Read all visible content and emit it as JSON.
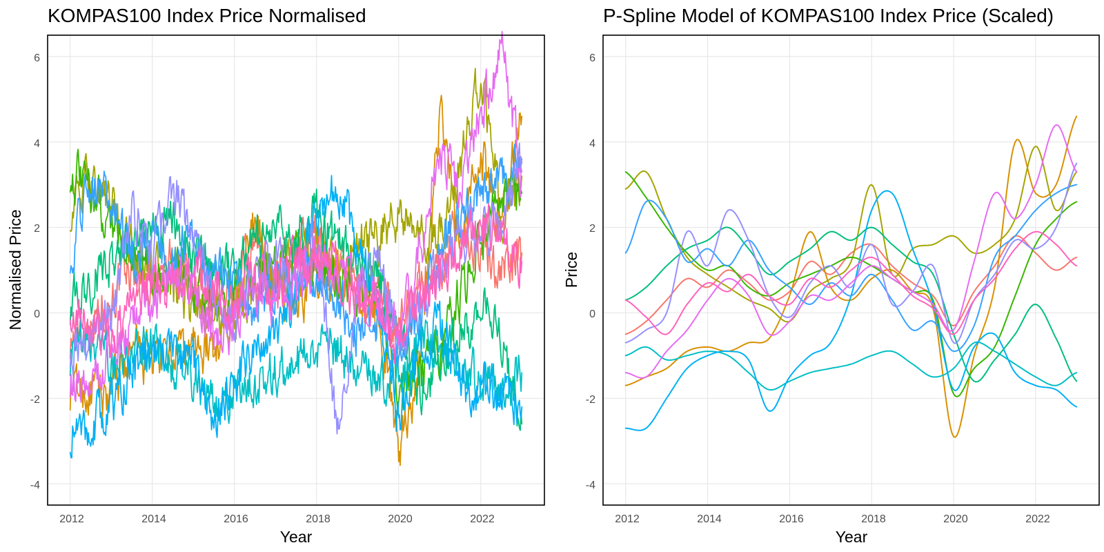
{
  "chart_data": [
    {
      "type": "line",
      "title": "KOMPAS100 Index Price Normalised",
      "xlabel": "Year",
      "ylabel": "Normalised Price",
      "xlim": [
        2011.45,
        2023.55
      ],
      "ylim": [
        -4.5,
        6.5
      ],
      "x_ticks": [
        "2012",
        "2014",
        "2016",
        "2018",
        "2020",
        "2022"
      ],
      "y_ticks": [
        "-4",
        "-2",
        "0",
        "2",
        "4",
        "6"
      ],
      "grid": true,
      "legend": "none",
      "style": "raw",
      "x": [
        2012,
        2012.5,
        2013,
        2013.5,
        2014,
        2014.5,
        2015,
        2015.5,
        2016,
        2016.5,
        2017,
        2017.5,
        2018,
        2018.5,
        2019,
        2019.5,
        2020,
        2020.5,
        2021,
        2021.5,
        2022,
        2022.5,
        2023
      ],
      "series": [
        {
          "color": "#F8766D",
          "values": [
            -0.6,
            -0.2,
            0.4,
            1.0,
            0.6,
            1.2,
            0.8,
            0.2,
            0.5,
            1.4,
            0.9,
            1.6,
            1.8,
            1.1,
            0.7,
            0.4,
            -0.3,
            0.6,
            1.2,
            2.0,
            1.5,
            1.0,
            1.4
          ]
        },
        {
          "color": "#D89000",
          "values": [
            -1.8,
            -1.9,
            -1.9,
            -1.0,
            -1.1,
            -1.1,
            -0.8,
            -0.9,
            0.6,
            2.0,
            0.5,
            0.2,
            0.8,
            1.1,
            0.4,
            0.0,
            -3.2,
            -1.2,
            4.8,
            1.5,
            3.8,
            2.0,
            4.6
          ]
        },
        {
          "color": "#A3A500",
          "values": [
            2.4,
            3.2,
            2.5,
            1.5,
            1.0,
            0.5,
            0.2,
            0.0,
            -0.3,
            0.6,
            0.8,
            1.2,
            1.5,
            0.9,
            1.6,
            1.7,
            2.4,
            1.6,
            1.8,
            3.4,
            5.6,
            2.4,
            3.2
          ]
        },
        {
          "color": "#39B600",
          "values": [
            3.3,
            2.8,
            2.2,
            1.4,
            0.9,
            1.1,
            0.6,
            0.3,
            0.7,
            0.9,
            1.2,
            1.4,
            1.1,
            0.8,
            0.5,
            0.3,
            -1.8,
            -1.4,
            -0.9,
            0.4,
            1.8,
            2.5,
            2.8
          ]
        },
        {
          "color": "#00BF7D",
          "values": [
            0.2,
            0.6,
            1.3,
            1.6,
            1.8,
            2.1,
            1.4,
            0.9,
            1.2,
            1.6,
            2.0,
            1.8,
            2.2,
            1.7,
            1.2,
            0.9,
            -0.6,
            -1.8,
            -1.2,
            -0.5,
            0.2,
            -0.6,
            -2.6
          ]
        },
        {
          "color": "#00BFC4",
          "values": [
            -1.0,
            -0.7,
            -1.2,
            -1.0,
            -0.9,
            -1.1,
            -1.6,
            -2.1,
            -1.8,
            -1.5,
            -1.4,
            -1.2,
            -1.0,
            -0.8,
            -1.3,
            -1.6,
            -1.4,
            -0.6,
            -0.9,
            -1.2,
            -1.6,
            -1.8,
            -1.4
          ]
        },
        {
          "color": "#00B0F6",
          "values": [
            -2.8,
            -2.6,
            -2.2,
            -1.3,
            -1.0,
            -0.8,
            -1.1,
            -2.4,
            -1.5,
            -1.0,
            -0.7,
            0.6,
            2.4,
            3.0,
            1.6,
            0.2,
            -2.5,
            -0.8,
            -0.4,
            -1.5,
            -1.8,
            -1.9,
            -2.2
          ]
        },
        {
          "color": "#35A2FF",
          "values": [
            1.4,
            3.3,
            2.6,
            1.3,
            1.7,
            1.2,
            1.9,
            1.1,
            0.6,
            0.2,
            0.7,
            0.4,
            0.9,
            0.3,
            -0.5,
            -0.2,
            -1.0,
            -0.3,
            1.6,
            2.0,
            2.6,
            3.1,
            3.6
          ]
        },
        {
          "color": "#9590FF",
          "values": [
            -0.8,
            -0.5,
            0.0,
            2.3,
            1.2,
            2.9,
            1.8,
            0.4,
            -0.1,
            0.8,
            1.3,
            0.6,
            1.9,
            -2.8,
            0.5,
            1.2,
            -0.8,
            0.3,
            0.9,
            1.9,
            1.6,
            2.2,
            3.5
          ]
        },
        {
          "color": "#E76BF3",
          "values": [
            -1.5,
            -1.7,
            -1.0,
            -0.4,
            0.3,
            0.9,
            0.4,
            -0.6,
            -0.2,
            0.5,
            0.3,
            0.8,
            1.2,
            0.9,
            0.6,
            0.2,
            -0.4,
            1.4,
            3.8,
            2.6,
            4.8,
            6.2,
            3.3
          ]
        },
        {
          "color": "#FF62BC",
          "values": [
            0.3,
            -0.2,
            -0.6,
            0.2,
            0.8,
            0.5,
            1.0,
            0.4,
            0.2,
            0.9,
            0.6,
            1.1,
            1.4,
            1.0,
            0.4,
            0.1,
            -0.6,
            0.3,
            0.9,
            1.6,
            2.1,
            1.8,
            1.2
          ]
        }
      ]
    },
    {
      "type": "line",
      "title": "P-Spline Model of KOMPAS100 Index Price (Scaled)",
      "xlabel": "Year",
      "ylabel": "Price",
      "xlim": [
        2011.45,
        2023.55
      ],
      "ylim": [
        -4.5,
        6.5
      ],
      "x_ticks": [
        "2012",
        "2014",
        "2016",
        "2018",
        "2020",
        "2022"
      ],
      "y_ticks": [
        "-4",
        "-2",
        "0",
        "2",
        "4",
        "6"
      ],
      "grid": true,
      "legend": "none",
      "style": "smooth",
      "x": [
        2012,
        2012.5,
        2013,
        2013.5,
        2014,
        2014.5,
        2015,
        2015.5,
        2016,
        2016.5,
        2017,
        2017.5,
        2018,
        2018.5,
        2019,
        2019.5,
        2020,
        2020.5,
        2021,
        2021.5,
        2022,
        2022.5,
        2023
      ],
      "series": [
        {
          "color": "#F8766D",
          "values": [
            -0.5,
            -0.2,
            0.3,
            0.8,
            0.6,
            1.0,
            0.7,
            0.3,
            0.5,
            1.2,
            0.9,
            1.4,
            1.6,
            1.1,
            0.7,
            0.4,
            -0.3,
            0.5,
            1.1,
            1.8,
            1.4,
            1.0,
            1.3
          ]
        },
        {
          "color": "#D89000",
          "values": [
            -1.7,
            -1.5,
            -1.3,
            -0.9,
            -0.8,
            -0.9,
            -0.7,
            -0.6,
            0.4,
            1.9,
            0.6,
            0.3,
            0.8,
            1.0,
            0.5,
            0.1,
            -2.9,
            -1.0,
            0.6,
            4.0,
            2.8,
            3.0,
            4.6
          ]
        },
        {
          "color": "#A3A500",
          "values": [
            2.9,
            3.3,
            2.2,
            1.3,
            0.9,
            0.6,
            0.3,
            0.1,
            -0.2,
            0.5,
            0.8,
            1.2,
            3.0,
            0.9,
            1.5,
            1.6,
            1.8,
            1.4,
            1.6,
            2.2,
            3.9,
            2.4,
            3.3
          ]
        },
        {
          "color": "#39B600",
          "values": [
            3.3,
            2.7,
            2.0,
            1.4,
            1.0,
            1.1,
            0.6,
            0.4,
            0.7,
            0.9,
            1.1,
            1.3,
            1.1,
            0.8,
            0.5,
            0.3,
            -1.9,
            -1.3,
            -0.8,
            0.4,
            1.6,
            2.2,
            2.6
          ]
        },
        {
          "color": "#00BF7D",
          "values": [
            0.3,
            0.6,
            1.1,
            1.5,
            1.7,
            2.0,
            1.5,
            0.9,
            1.2,
            1.5,
            1.9,
            1.7,
            2.0,
            1.6,
            1.2,
            0.9,
            -0.5,
            -1.6,
            -1.1,
            -0.5,
            0.2,
            -0.6,
            -1.6
          ]
        },
        {
          "color": "#00BFC4",
          "values": [
            -1.0,
            -0.8,
            -1.1,
            -1.0,
            -0.9,
            -1.0,
            -1.4,
            -1.8,
            -1.6,
            -1.4,
            -1.3,
            -1.2,
            -1.0,
            -0.9,
            -1.2,
            -1.5,
            -1.3,
            -0.7,
            -0.9,
            -1.2,
            -1.5,
            -1.7,
            -1.4
          ]
        },
        {
          "color": "#00B0F6",
          "values": [
            -2.7,
            -2.7,
            -2.0,
            -1.3,
            -1.0,
            -0.9,
            -1.1,
            -2.3,
            -1.5,
            -1.0,
            -0.7,
            0.4,
            2.4,
            2.8,
            1.5,
            0.2,
            -1.8,
            -0.8,
            -0.5,
            -1.4,
            -1.7,
            -1.8,
            -2.2
          ]
        },
        {
          "color": "#35A2FF",
          "values": [
            1.4,
            2.6,
            2.2,
            1.2,
            1.5,
            1.1,
            1.7,
            1.0,
            0.6,
            0.2,
            0.7,
            0.4,
            0.9,
            0.3,
            -0.4,
            -0.2,
            -0.9,
            -0.3,
            1.3,
            1.8,
            2.4,
            2.8,
            3.0
          ]
        },
        {
          "color": "#9590FF",
          "values": [
            -0.7,
            -0.4,
            0.0,
            1.9,
            1.1,
            2.4,
            1.7,
            0.4,
            -0.1,
            0.7,
            1.1,
            0.6,
            1.6,
            0.2,
            0.5,
            1.1,
            -0.7,
            0.3,
            0.9,
            1.7,
            1.5,
            2.0,
            3.5
          ]
        },
        {
          "color": "#E76BF3",
          "values": [
            -1.4,
            -1.5,
            -0.9,
            -0.4,
            0.3,
            0.8,
            0.4,
            -0.5,
            -0.2,
            0.4,
            0.3,
            0.7,
            1.1,
            0.8,
            0.5,
            0.2,
            -0.4,
            1.2,
            2.8,
            2.2,
            3.0,
            4.4,
            3.3
          ]
        },
        {
          "color": "#FF62BC",
          "values": [
            0.3,
            -0.1,
            -0.5,
            0.2,
            0.7,
            0.5,
            0.9,
            0.4,
            0.2,
            0.8,
            0.6,
            1.0,
            1.3,
            0.9,
            0.4,
            0.1,
            -0.5,
            0.3,
            0.8,
            1.5,
            1.9,
            1.6,
            1.1
          ]
        }
      ]
    }
  ]
}
